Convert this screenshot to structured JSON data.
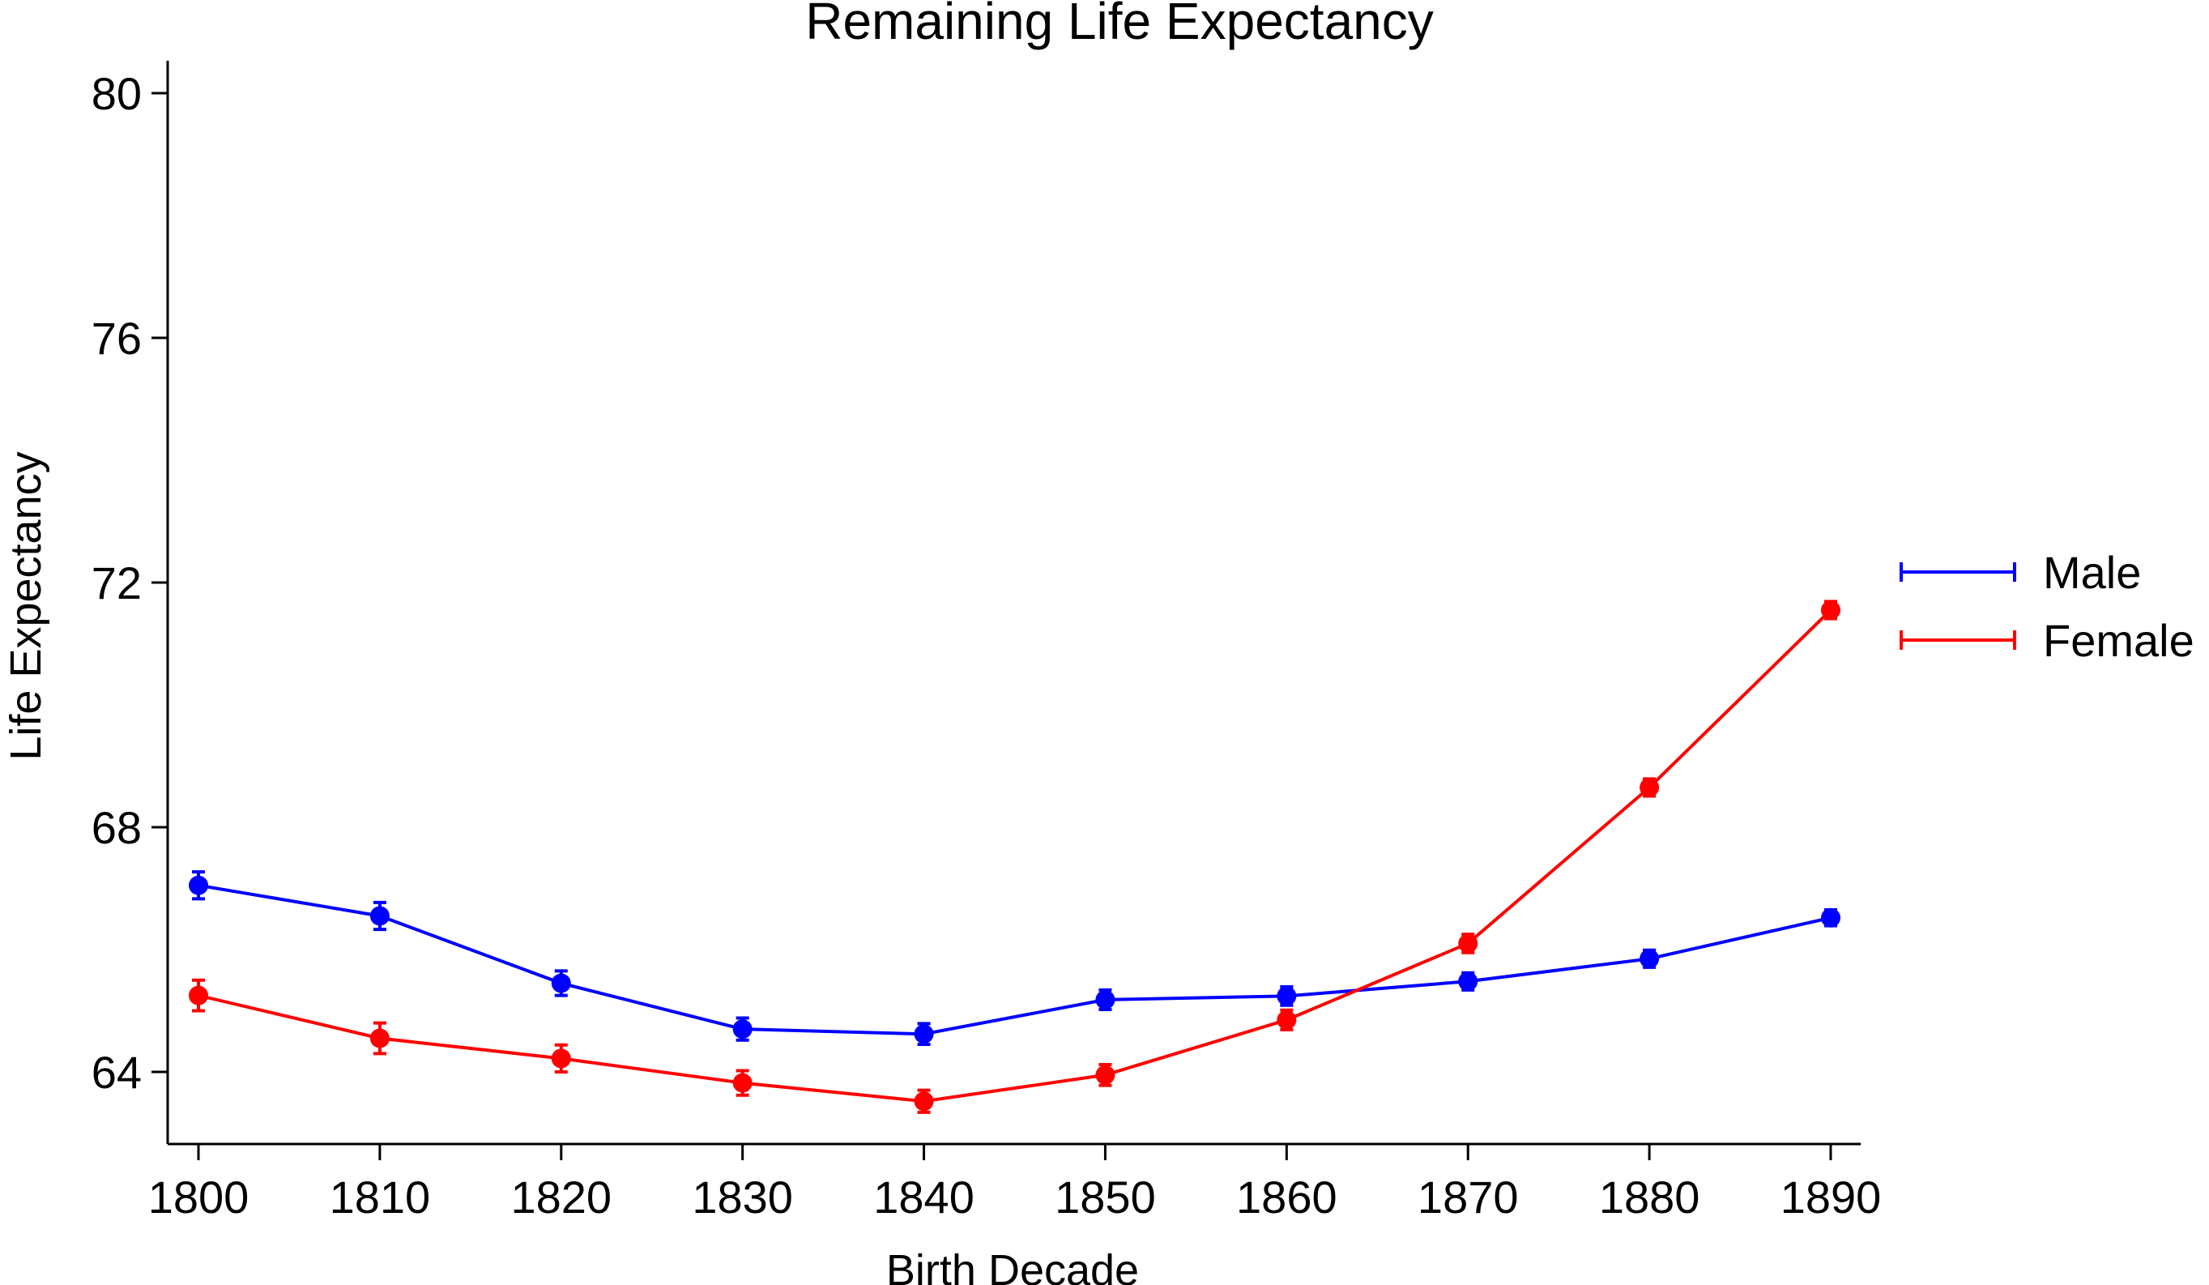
{
  "chart_data": {
    "type": "line",
    "title": "Remaining Life Expectancy",
    "xlabel": "Birth Decade",
    "ylabel": "Life Expectancy",
    "x": [
      1800,
      1810,
      1820,
      1830,
      1840,
      1850,
      1860,
      1870,
      1880,
      1890
    ],
    "xticks": [
      "1800",
      "1810",
      "1820",
      "1830",
      "1840",
      "1850",
      "1860",
      "1870",
      "1880",
      "1890"
    ],
    "yticks": [
      "64",
      "68",
      "72",
      "76",
      "80"
    ],
    "xlim": [
      1799,
      1891
    ],
    "ylim": [
      62.8,
      80.5
    ],
    "grid": false,
    "legend_position": "right",
    "series": [
      {
        "name": "Male",
        "color": "#0000ff",
        "values": [
          67.05,
          66.55,
          65.45,
          64.7,
          64.62,
          65.18,
          65.24,
          65.48,
          65.85,
          66.52
        ],
        "ci": [
          0.22,
          0.22,
          0.2,
          0.18,
          0.17,
          0.16,
          0.15,
          0.14,
          0.14,
          0.13
        ]
      },
      {
        "name": "Female",
        "color": "#ff0000",
        "values": [
          65.25,
          64.55,
          64.22,
          63.82,
          63.52,
          63.95,
          64.85,
          66.1,
          68.65,
          71.55
        ],
        "ci": [
          0.25,
          0.25,
          0.22,
          0.2,
          0.18,
          0.17,
          0.16,
          0.15,
          0.14,
          0.14
        ]
      }
    ]
  }
}
